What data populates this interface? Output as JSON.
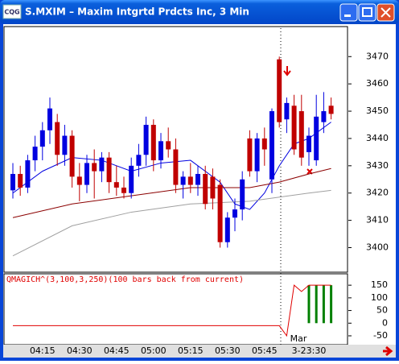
{
  "icon": "CQG",
  "chart_data": {
    "type": "candlestick",
    "title": "S.MXIM – Maxim Intgrtd Prdcts Inc, 3 Min",
    "categories": [
      null,
      null,
      null,
      null,
      "04:15",
      null,
      null,
      null,
      null,
      "04:30",
      null,
      null,
      null,
      null,
      "04:45",
      null,
      null,
      null,
      null,
      "05:00",
      null,
      null,
      null,
      null,
      "05:15",
      null,
      null,
      null,
      null,
      "05:30",
      null,
      null,
      null,
      null,
      "05:45",
      null,
      null,
      null,
      null,
      null,
      "3-23:30",
      null,
      null,
      null
    ],
    "annotation": "Mar",
    "open": [
      3421,
      3427,
      3422,
      3432,
      3437,
      3443,
      3446,
      3434,
      3441,
      3426,
      3423,
      3431,
      3428,
      3433,
      3424,
      3422,
      3420,
      3430,
      3434,
      3445,
      3432,
      3439,
      3436,
      3423,
      3426,
      3423,
      3427,
      3426,
      3423,
      3402,
      3411,
      3414,
      3440,
      3428,
      3440,
      3425,
      3469,
      3447,
      3452,
      3450,
      3435,
      3432,
      3446,
      3452
    ],
    "high": [
      3431,
      3430,
      3434,
      3441,
      3446,
      3455,
      3449,
      3445,
      3443,
      3431,
      3434,
      3436,
      3435,
      3435,
      3430,
      3426,
      3433,
      3438,
      3448,
      3447,
      3442,
      3444,
      3440,
      3428,
      3431,
      3430,
      3430,
      3429,
      3425,
      3413,
      3418,
      3428,
      3443,
      3442,
      3444,
      3451,
      3470,
      3455,
      3456,
      3456,
      3444,
      3456,
      3457,
      3455
    ],
    "low": [
      3418,
      3419,
      3420,
      3428,
      3432,
      3438,
      3430,
      3430,
      3422,
      3417,
      3420,
      3418,
      3424,
      3420,
      3419,
      3418,
      3418,
      3426,
      3430,
      3428,
      3429,
      3433,
      3420,
      3418,
      3420,
      3419,
      3414,
      3414,
      3400,
      3400,
      3406,
      3410,
      3426,
      3424,
      3430,
      3420,
      3444,
      3442,
      3434,
      3430,
      3430,
      3430,
      3442,
      3447
    ],
    "close": [
      3427,
      3422,
      3432,
      3437,
      3443,
      3451,
      3434,
      3441,
      3426,
      3423,
      3431,
      3428,
      3433,
      3424,
      3422,
      3420,
      3430,
      3434,
      3445,
      3432,
      3439,
      3436,
      3423,
      3426,
      3423,
      3427,
      3416,
      3418,
      3402,
      3411,
      3414,
      3425,
      3428,
      3440,
      3436,
      3450,
      3446,
      3453,
      3436,
      3433,
      3441,
      3448,
      3450,
      3449
    ],
    "up_color": "#0000e0",
    "down_color": "#c00000",
    "ylim": [
      3391,
      3481
    ],
    "yticks": [
      3400,
      3410,
      3420,
      3430,
      3440,
      3450,
      3460,
      3470
    ],
    "overlays": [
      {
        "color": "#0000e0",
        "x": [
          0,
          4,
          8,
          12,
          16,
          20,
          24,
          28,
          30,
          32,
          34,
          36,
          38,
          40,
          43
        ],
        "values": [
          3420,
          3428,
          3433,
          3432,
          3428,
          3431,
          3432,
          3424,
          3416,
          3414,
          3420,
          3430,
          3438,
          3440,
          3446
        ]
      },
      {
        "color": "#8b0000",
        "x": [
          0,
          8,
          16,
          24,
          32,
          36,
          40,
          43
        ],
        "values": [
          3411,
          3416,
          3419,
          3422,
          3422,
          3424,
          3427,
          3429
        ]
      },
      {
        "color": "#a0a0a0",
        "x": [
          0,
          8,
          16,
          24,
          32,
          40,
          43
        ],
        "values": [
          3397,
          3408,
          3413,
          3416,
          3417,
          3420,
          3421
        ]
      }
    ],
    "indicator": {
      "label": "QMAGICH^(3,100,3,250)(100 bars back from current)",
      "color": "#e00000",
      "values": [
        -10,
        -10,
        -10,
        -10,
        -10,
        -10,
        -10,
        -10,
        -10,
        -10,
        -10,
        -10,
        -10,
        -10,
        -10,
        -10,
        -10,
        -10,
        -10,
        -10,
        -10,
        -10,
        -10,
        -10,
        -10,
        -10,
        -10,
        -10,
        -10,
        -10,
        -10,
        -10,
        -10,
        -10,
        -10,
        -10,
        -10,
        -50,
        150,
        125,
        150,
        150,
        150,
        150
      ],
      "histogram_color": "#008000",
      "histogram": [
        null,
        null,
        null,
        null,
        null,
        null,
        null,
        null,
        null,
        null,
        null,
        null,
        null,
        null,
        null,
        null,
        null,
        null,
        null,
        null,
        null,
        null,
        null,
        null,
        null,
        null,
        null,
        null,
        null,
        null,
        null,
        null,
        null,
        null,
        null,
        null,
        null,
        null,
        null,
        null,
        150,
        150,
        150,
        150
      ],
      "ylim": [
        -85,
        195
      ],
      "yticks": [
        150,
        100,
        50,
        0,
        -50
      ]
    }
  }
}
